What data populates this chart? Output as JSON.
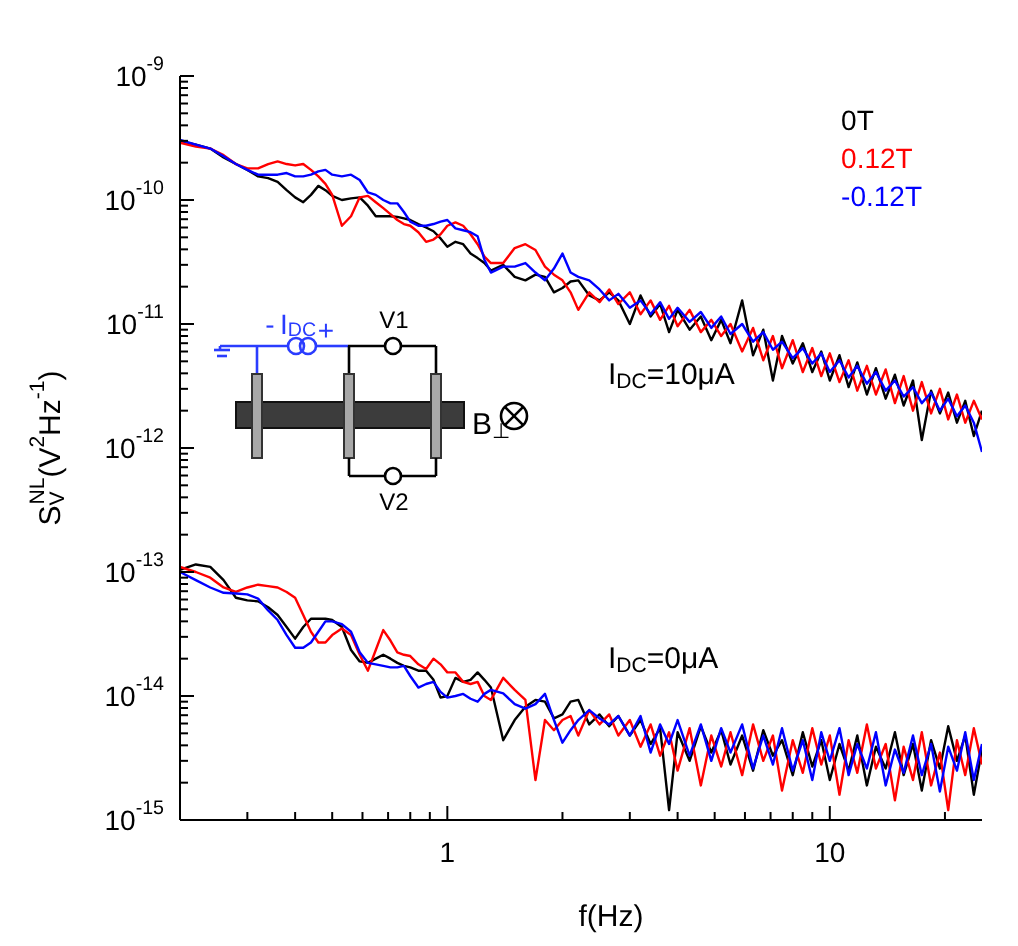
{
  "chart_data": {
    "type": "line",
    "xlabel": "f(Hz)",
    "ylabel": "S$_{V}$$^{NL}$(V$^{2}$Hz$^{-1}$)",
    "log": "xy",
    "legend": "top right",
    "marker": "none",
    "line_style": "solid",
    "xlim": [
      0.2,
      25
    ],
    "xticks": [
      {
        "value": 0.3,
        "label": null
      },
      {
        "value": 0.4,
        "label": null
      },
      {
        "value": 0.5,
        "label": null
      },
      {
        "value": 0.6,
        "label": null
      },
      {
        "value": 0.7,
        "label": null
      },
      {
        "value": 0.8,
        "label": null
      },
      {
        "value": 0.9,
        "label": null
      },
      1,
      {
        "value": 2,
        "label": null
      },
      {
        "value": 3,
        "label": null
      },
      {
        "value": 4,
        "label": null
      },
      {
        "value": 5,
        "label": null
      },
      {
        "value": 6,
        "label": null
      },
      {
        "value": 7,
        "label": null
      },
      {
        "value": 8,
        "label": null
      },
      {
        "value": 9,
        "label": null
      },
      10,
      {
        "value": 20,
        "label": null
      }
    ],
    "ylim": [
      1e-15,
      1e-09
    ],
    "yticks": [
      {
        "value": 1e-15,
        "label": "10$^{-15}$"
      },
      {
        "value": 2e-15,
        "label": null
      },
      {
        "value": 3e-15,
        "label": null
      },
      {
        "value": 4e-15,
        "label": null
      },
      {
        "value": 5e-15,
        "label": null
      },
      {
        "value": 6e-15,
        "label": null
      },
      {
        "value": 7e-15,
        "label": null
      },
      {
        "value": 8e-15,
        "label": null
      },
      {
        "value": 9e-15,
        "label": null
      },
      {
        "value": 1e-14,
        "label": "10$^{-14}$"
      },
      {
        "value": 2e-14,
        "label": null
      },
      {
        "value": 3e-14,
        "label": null
      },
      {
        "value": 4e-14,
        "label": null
      },
      {
        "value": 5e-14,
        "label": null
      },
      {
        "value": 6e-14,
        "label": null
      },
      {
        "value": 7e-14,
        "label": null
      },
      {
        "value": 8e-14,
        "label": null
      },
      {
        "value": 9e-14,
        "label": null
      },
      {
        "value": 1e-13,
        "label": "10$^{-13}$"
      },
      {
        "value": 2e-13,
        "label": null
      },
      {
        "value": 3e-13,
        "label": null
      },
      {
        "value": 4e-13,
        "label": null
      },
      {
        "value": 5e-13,
        "label": null
      },
      {
        "value": 6e-13,
        "label": null
      },
      {
        "value": 7e-13,
        "label": null
      },
      {
        "value": 8e-13,
        "label": null
      },
      {
        "value": 9e-13,
        "label": null
      },
      {
        "value": 1e-12,
        "label": "10$^{-12}$"
      },
      {
        "value": 2e-12,
        "label": null
      },
      {
        "value": 3e-12,
        "label": null
      },
      {
        "value": 4e-12,
        "label": null
      },
      {
        "value": 5e-12,
        "label": null
      },
      {
        "value": 6e-12,
        "label": null
      },
      {
        "value": 7e-12,
        "label": null
      },
      {
        "value": 8e-12,
        "label": null
      },
      {
        "value": 9e-12,
        "label": null
      },
      {
        "value": 1e-11,
        "label": "10$^{-11}$"
      },
      {
        "value": 2e-11,
        "label": null
      },
      {
        "value": 3e-11,
        "label": null
      },
      {
        "value": 4e-11,
        "label": null
      },
      {
        "value": 5e-11,
        "label": null
      },
      {
        "value": 6e-11,
        "label": null
      },
      {
        "value": 7e-11,
        "label": null
      },
      {
        "value": 8e-11,
        "label": null
      },
      {
        "value": 9e-11,
        "label": null
      },
      {
        "value": 1e-10,
        "label": "10$^{-10}$"
      },
      {
        "value": 2e-10,
        "label": null
      },
      {
        "value": 3e-10,
        "label": null
      },
      {
        "value": 4e-10,
        "label": null
      },
      {
        "value": 5e-10,
        "label": null
      },
      {
        "value": 6e-10,
        "label": null
      },
      {
        "value": 7e-10,
        "label": null
      },
      {
        "value": 8e-10,
        "label": null
      },
      {
        "value": 9e-10,
        "label": null
      },
      {
        "value": 1e-09,
        "label": "10$^{-9}$"
      }
    ],
    "annotations": [
      "I$_{DC}$=10μA",
      "I$_{DC}$=0μA",
      "-",
      "I$_{DC}$",
      "+",
      "V1",
      "V2",
      "B$_{⊥}$"
    ],
    "x": [
      0.2,
      0.22,
      0.24,
      0.26,
      0.28,
      0.3,
      0.32,
      0.34,
      0.36,
      0.38,
      0.4,
      0.42,
      0.44,
      0.46,
      0.48,
      0.5,
      0.53,
      0.56,
      0.59,
      0.62,
      0.65,
      0.68,
      0.71,
      0.74,
      0.77,
      0.8,
      0.84,
      0.88,
      0.92,
      0.96,
      1.0,
      1.05,
      1.1,
      1.15,
      1.2,
      1.25,
      1.3,
      1.4,
      1.5,
      1.6,
      1.7,
      1.8,
      1.9,
      2.0,
      2.1,
      2.2,
      2.35,
      2.5,
      2.65,
      2.8,
      3.0,
      3.2,
      3.4,
      3.6,
      3.8,
      4.0,
      4.3,
      4.6,
      4.9,
      5.2,
      5.5,
      5.9,
      6.3,
      6.7,
      7.1,
      7.5,
      8.0,
      8.5,
      9.0,
      9.5,
      10,
      10.6,
      11.2,
      11.8,
      12.5,
      13.2,
      14,
      14.8,
      15.6,
      16.5,
      17.4,
      18.4,
      19.4,
      20.4,
      21.5,
      22.6,
      23.8,
      25
    ],
    "series": [
      {
        "name": "0T",
        "color": "#000000",
        "values": [
          3e-10,
          2.8e-10,
          2.6e-10,
          2.2e-10,
          1.95e-10,
          1.75e-10,
          1.55e-10,
          1.5e-10,
          1.4e-10,
          1.2e-10,
          1.05e-10,
          9.6e-11,
          1.1e-10,
          1.3e-10,
          1.2e-10,
          1.08e-10,
          1e-10,
          1.03e-10,
          1.05e-10,
          9e-11,
          7.4e-11,
          7.4e-11,
          7.4e-11,
          7.3e-11,
          7.1e-11,
          6.9e-11,
          6.4e-11,
          6e-11,
          5.6e-11,
          4.9e-11,
          4.2e-11,
          4.6e-11,
          4.4e-11,
          3.7e-11,
          3.4e-11,
          3.1e-11,
          2.7e-11,
          3e-11,
          2.4e-11,
          2.25e-11,
          2.5e-11,
          2.4e-11,
          1.8e-11,
          1.95e-11,
          2.2e-11,
          2.25e-11,
          1.7e-11,
          1.55e-11,
          1.8e-11,
          1.55e-11,
          1e-11,
          1.7e-11,
          1.15e-11,
          1.45e-11,
          8.6e-12,
          1.3e-11,
          9e-12,
          1.15e-11,
          7.4e-12,
          1.08e-11,
          7e-12,
          1.55e-11,
          5.6e-12,
          9e-12,
          3.5e-12,
          8e-12,
          4.8e-12,
          7e-12,
          4.1e-12,
          6e-12,
          3.5e-12,
          5.6e-12,
          3.1e-12,
          4.9e-12,
          2.7e-12,
          4.4e-12,
          2.5e-12,
          3.9e-12,
          2.2e-12,
          3.5e-12,
          1.16e-12,
          2.9e-12,
          1.9e-12,
          2.8e-12,
          1.6e-12,
          2.4e-12,
          1.25e-12,
          2e-12
        ]
      },
      {
        "name": "0.12T",
        "color": "#ff0000",
        "values": [
          2.9e-10,
          2.7e-10,
          2.6e-10,
          2.3e-10,
          1.95e-10,
          1.8e-10,
          1.8e-10,
          1.95e-10,
          2.05e-10,
          1.95e-10,
          1.9e-10,
          1.95e-10,
          1.75e-10,
          1.55e-10,
          1.35e-10,
          1.1e-10,
          6.2e-11,
          7.4e-11,
          1.05e-10,
          1.08e-10,
          9.6e-11,
          8.6e-11,
          7.7e-11,
          6.9e-11,
          6.4e-11,
          6.2e-11,
          5.5e-11,
          4.6e-11,
          4.8e-11,
          5.3e-11,
          6.2e-11,
          6.6e-11,
          6.2e-11,
          5.3e-11,
          4.4e-11,
          3.5e-11,
          3.1e-11,
          3.1e-11,
          4.1e-11,
          4.4e-11,
          3.95e-11,
          2.9e-11,
          2.5e-11,
          2.25e-11,
          1.8e-11,
          1.3e-11,
          1.8e-11,
          1.5e-11,
          1.9e-11,
          1.45e-11,
          1.8e-11,
          1.2e-11,
          1.55e-11,
          1.08e-11,
          1.4e-11,
          9.6e-12,
          1.3e-11,
          8.6e-12,
          1.08e-11,
          8e-12,
          1e-11,
          6e-12,
          9.3e-12,
          5.1e-12,
          8e-12,
          4.4e-12,
          7.4e-12,
          4.1e-12,
          6.4e-12,
          3.8e-12,
          5.8e-12,
          3.4e-12,
          5.1e-12,
          2.9e-12,
          4.6e-12,
          2.7e-12,
          4.3e-12,
          2.3e-12,
          3.8e-12,
          2e-12,
          3.4e-12,
          1.9e-12,
          3e-12,
          1.7e-12,
          2.7e-12,
          1.6e-12,
          2.4e-12,
          1.7e-12
        ]
      },
      {
        "name": "-0.12T",
        "color": "#0000ff",
        "values": [
          3.05e-10,
          2.8e-10,
          2.6e-10,
          2.25e-10,
          1.95e-10,
          1.75e-10,
          1.6e-10,
          1.6e-10,
          1.6e-10,
          1.65e-10,
          1.55e-10,
          1.55e-10,
          1.6e-10,
          1.7e-10,
          1.75e-10,
          1.6e-10,
          1.55e-10,
          1.6e-10,
          1.45e-10,
          1.15e-10,
          1.1e-10,
          1e-10,
          9.4e-11,
          9.4e-11,
          8e-11,
          6.7e-11,
          6.2e-11,
          6.2e-11,
          6.4e-11,
          6.7e-11,
          6.9e-11,
          5.9e-11,
          5.7e-11,
          5.5e-11,
          5.1e-11,
          3.3e-11,
          2.6e-11,
          2.9e-11,
          2.9e-11,
          3.1e-11,
          2.6e-11,
          2.25e-11,
          2.8e-11,
          3.7e-11,
          2.6e-11,
          2.4e-11,
          2.25e-11,
          1.9e-11,
          1.55e-11,
          1.75e-11,
          1.35e-11,
          1.55e-11,
          1.2e-11,
          1.5e-11,
          1.1e-11,
          1.35e-11,
          1.04e-11,
          1.25e-11,
          9.3e-12,
          1.15e-11,
          8.3e-12,
          1e-11,
          7.2e-12,
          8.6e-12,
          6.2e-12,
          7.2e-12,
          5.3e-12,
          6.4e-12,
          4.8e-12,
          5.8e-12,
          4.1e-12,
          5.1e-12,
          3.7e-12,
          4.6e-12,
          3.3e-12,
          4.1e-12,
          2.9e-12,
          3.5e-12,
          2.6e-12,
          3.1e-12,
          2.3e-12,
          2.8e-12,
          2e-12,
          2.5e-12,
          1.8e-12,
          2.2e-12,
          1.6e-12,
          9.3e-13
        ]
      },
      {
        "color": "#000000",
        "values": [
          1.04e-13,
          1.15e-13,
          1.1e-13,
          8.6e-14,
          6.2e-14,
          5.9e-14,
          5.8e-14,
          5.2e-14,
          4.5e-14,
          3.6e-14,
          2.9e-14,
          3.6e-14,
          4.2e-14,
          4.2e-14,
          4.2e-14,
          4.1e-14,
          3.6e-14,
          2.35e-14,
          1.9e-14,
          1.85e-14,
          2e-14,
          2.15e-14,
          2e-14,
          1.85e-14,
          1.75e-14,
          1.7e-14,
          1.6e-14,
          1.6e-14,
          1.35e-14,
          9.7e-15,
          1e-14,
          1.4e-14,
          1.3e-14,
          1.35e-14,
          1.55e-14,
          1.35e-14,
          1.17e-14,
          4.4e-15,
          6.4e-15,
          8.2e-15,
          9.3e-15,
          9e-15,
          6.6e-15,
          7.1e-15,
          9e-15,
          9.3e-15,
          5.9e-15,
          7.1e-15,
          5.7e-15,
          6.9e-15,
          4.8e-15,
          6.4e-15,
          4.1e-15,
          5.5e-15,
          1.2e-15,
          5.1e-15,
          3e-15,
          5.7e-15,
          3.5e-15,
          5.3e-15,
          2.8e-15,
          4.8e-15,
          2.5e-15,
          5.3e-15,
          3.3e-15,
          4.4e-15,
          2.3e-15,
          5.1e-15,
          2.7e-15,
          4.4e-15,
          2.1e-15,
          4.1e-15,
          2.5e-15,
          4.8e-15,
          1.9e-15,
          3.9e-15,
          2.6e-15,
          5.1e-15,
          2.3e-15,
          4.1e-15,
          1.73e-15,
          4.4e-15,
          2.6e-15,
          5.7e-15,
          3e-15,
          4.8e-15,
          1.6e-15,
          3.7e-15
        ]
      },
      {
        "color": "#ff0000",
        "values": [
          1.1e-13,
          1e-13,
          9e-14,
          7.5e-14,
          6.9e-14,
          7.5e-14,
          7.9e-14,
          7.7e-14,
          7.5e-14,
          6.9e-14,
          6.2e-14,
          4.5e-14,
          3.3e-14,
          2.7e-14,
          2.7e-14,
          3.1e-14,
          3.5e-14,
          3.1e-14,
          2.15e-14,
          1.6e-14,
          2.35e-14,
          3.4e-14,
          2.8e-14,
          2.25e-14,
          2.15e-14,
          2.1e-14,
          1.8e-14,
          1.65e-14,
          2e-14,
          1.8e-14,
          1.55e-14,
          1.55e-14,
          1.3e-14,
          1.25e-14,
          1.3e-14,
          1e-14,
          9.3e-15,
          1.4e-14,
          1.12e-14,
          9.3e-15,
          2.1e-15,
          6.4e-15,
          5.3e-15,
          6.4e-15,
          6.9e-15,
          4.8e-15,
          7.7e-15,
          5.9e-15,
          7.1e-15,
          4.8e-15,
          6.4e-15,
          3.9e-15,
          5.9e-15,
          3.3e-15,
          5.1e-15,
          2.5e-15,
          5.5e-15,
          1.9e-15,
          4.8e-15,
          2.7e-15,
          5.1e-15,
          2.3e-15,
          5.9e-15,
          3e-15,
          4.8e-15,
          1.73e-15,
          4.4e-15,
          2.4e-15,
          5.5e-15,
          2.8e-15,
          4.8e-15,
          1.6e-15,
          4.4e-15,
          2.4e-15,
          5.9e-15,
          2.6e-15,
          4.1e-15,
          1.44e-15,
          3.9e-15,
          2.1e-15,
          5.1e-15,
          1.9e-15,
          3.5e-15,
          1.2e-15,
          4.4e-15,
          2.3e-15,
          5.5e-15,
          2.8e-15
        ]
      },
      {
        "color": "#0000ff",
        "values": [
          1e-13,
          8.6e-14,
          7.5e-14,
          6.8e-14,
          6.7e-14,
          6.6e-14,
          6.1e-14,
          4.9e-14,
          4.1e-14,
          3.1e-14,
          2.45e-14,
          2.45e-14,
          2.7e-14,
          3.3e-14,
          4e-14,
          4e-14,
          3.8e-14,
          3.3e-14,
          2.25e-14,
          1.85e-14,
          1.8e-14,
          1.75e-14,
          1.7e-14,
          1.7e-14,
          1.75e-14,
          1.45e-14,
          1.17e-14,
          1.25e-14,
          1.3e-14,
          1.08e-14,
          9.7e-15,
          1e-14,
          1.04e-14,
          9.5e-15,
          9e-15,
          1.04e-14,
          1.12e-14,
          1.05e-14,
          8.6e-15,
          7.9e-15,
          8.6e-15,
          1.04e-14,
          6.4e-15,
          4.2e-15,
          5.3e-15,
          6.4e-15,
          7.7e-15,
          6.6e-15,
          5.9e-15,
          6.9e-15,
          4.8e-15,
          6.9e-15,
          3.5e-15,
          5.9e-15,
          4.1e-15,
          6.4e-15,
          3.3e-15,
          5.9e-15,
          3e-15,
          5.5e-15,
          3.5e-15,
          5.9e-15,
          2.6e-15,
          4.8e-15,
          2.8e-15,
          5.5e-15,
          2.5e-15,
          4.4e-15,
          2.1e-15,
          5.1e-15,
          3e-15,
          5.5e-15,
          2.3e-15,
          4.1e-15,
          2.6e-15,
          5.1e-15,
          1.9e-15,
          3.7e-15,
          2.4e-15,
          4.8e-15,
          2.3e-15,
          4.1e-15,
          1.7e-15,
          3.9e-15,
          2.5e-15,
          5.1e-15,
          2.1e-15,
          4.1e-15
        ]
      }
    ]
  }
}
